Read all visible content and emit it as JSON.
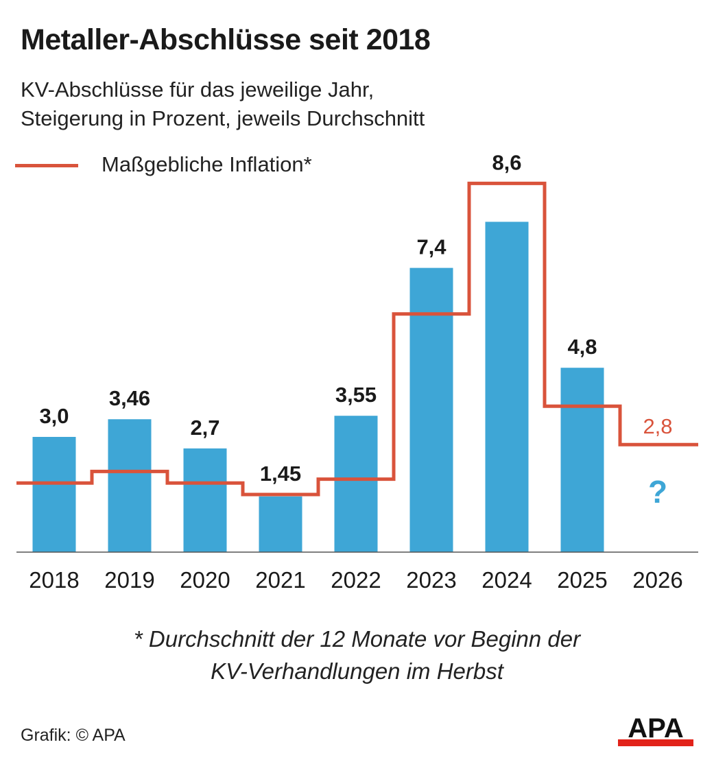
{
  "header": {
    "title": "Metaller-Abschlüsse seit 2018",
    "subtitle_line1": "KV-Abschlüsse für das jeweilige Jahr,",
    "subtitle_line2": "Steigerung in Prozent, jeweils Durchschnitt"
  },
  "legend": {
    "inflation_label": "Maßgebliche Inflation*"
  },
  "chart_data": {
    "type": "bar",
    "title": "Metaller-Abschlüsse seit 2018",
    "xlabel": "",
    "ylabel": "Steigerung in Prozent",
    "ylim": [
      0,
      9.5
    ],
    "grid": false,
    "legend_position": "top-left",
    "categories": [
      "2018",
      "2019",
      "2020",
      "2021",
      "2022",
      "2023",
      "2024",
      "2025",
      "2026"
    ],
    "series": [
      {
        "name": "KV-Abschluss",
        "color": "#3ea6d6",
        "values": [
          3.0,
          3.46,
          2.7,
          1.45,
          3.55,
          7.4,
          8.6,
          4.8,
          null
        ],
        "labels": [
          "3,0",
          "3,46",
          "2,7",
          "1,45",
          "3,55",
          "7,4",
          "8,6",
          "4,8",
          "?"
        ]
      },
      {
        "name": "Maßgebliche Inflation*",
        "type": "step-line",
        "color": "#d9533b",
        "values": [
          1.8,
          2.1,
          1.8,
          1.5,
          1.9,
          6.2,
          9.6,
          3.8,
          2.8
        ],
        "labels": [
          null,
          null,
          null,
          null,
          null,
          null,
          null,
          null,
          "2,8"
        ]
      }
    ],
    "question_color": "#3ea6d6",
    "inflation_label_color": "#d9533b"
  },
  "footnote": {
    "line1": "* Durchschnitt der 12 Monate vor Beginn der",
    "line2": "KV-Verhandlungen im Herbst"
  },
  "credit": "Grafik: © APA",
  "logo": {
    "text": "APA",
    "bar_color": "#e2231a",
    "text_color": "#111111"
  }
}
